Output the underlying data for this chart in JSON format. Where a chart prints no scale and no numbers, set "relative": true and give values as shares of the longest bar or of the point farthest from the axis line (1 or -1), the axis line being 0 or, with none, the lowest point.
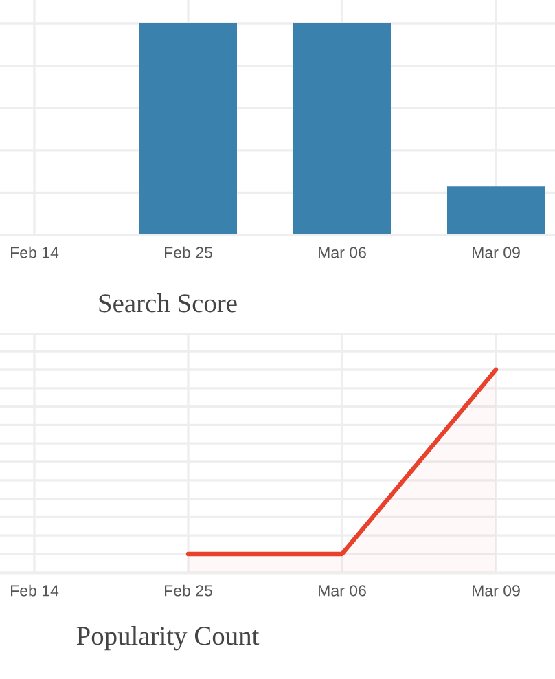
{
  "chart_data": [
    {
      "type": "bar",
      "categories": [
        "Feb 14",
        "Feb 25",
        "Mar 06",
        "Mar 09"
      ],
      "values": [
        0,
        1,
        1,
        0.23
      ],
      "color": "#3a81ad",
      "relative": true,
      "grid": true
    },
    {
      "type": "area",
      "title": "Search Score",
      "categories": [
        "Feb 14",
        "Feb 25",
        "Mar 06",
        "Mar 09"
      ],
      "series": [
        {
          "color": "#e8412c",
          "values": [
            null,
            0,
            0,
            1
          ]
        }
      ],
      "relative": true,
      "grid": true
    },
    {
      "type": "other",
      "title": "Popularity Count"
    }
  ]
}
